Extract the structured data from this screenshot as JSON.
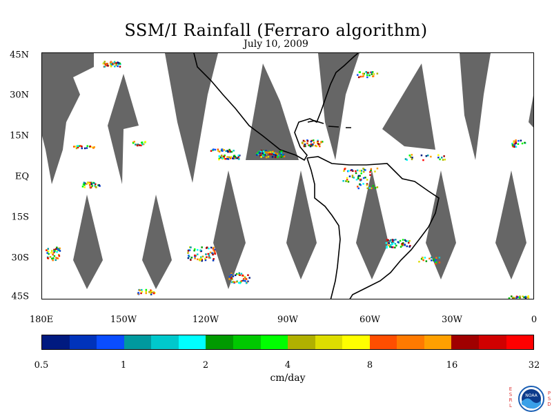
{
  "title": "SSM/I Rainfall (Ferraro algorithm)",
  "subtitle": "July 10, 2009",
  "map": {
    "y_axis_labels": [
      "45N",
      "30N",
      "15N",
      "EQ",
      "15S",
      "30S",
      "45S"
    ],
    "x_axis_labels": [
      "180E",
      "150W",
      "120W",
      "90W",
      "60W",
      "30W",
      "0"
    ],
    "lon_range": [
      -180,
      0
    ],
    "lat_range": [
      -45,
      45
    ],
    "swath_gap_color": "#666666",
    "land_outline_color": "#000000"
  },
  "colorbar": {
    "colors": [
      "#001a80",
      "#0033bb",
      "#0a4dff",
      "#00999e",
      "#00c8cc",
      "#00ffff",
      "#009a00",
      "#00c800",
      "#00ff00",
      "#b0b000",
      "#dddd00",
      "#ffff00",
      "#ff4e00",
      "#ff7a00",
      "#ffa000",
      "#a00000",
      "#d00000",
      "#ff0000"
    ],
    "tick_labels": [
      "0.5",
      "1",
      "2",
      "4",
      "8",
      "16",
      "32"
    ],
    "units": "cm/day"
  },
  "logo": {
    "left_letters": [
      "E",
      "S",
      "R",
      "L"
    ],
    "right_letters": [
      "P",
      "S",
      "D"
    ],
    "emblem": "NOAA",
    "icon": "noaa-logo-icon"
  }
}
